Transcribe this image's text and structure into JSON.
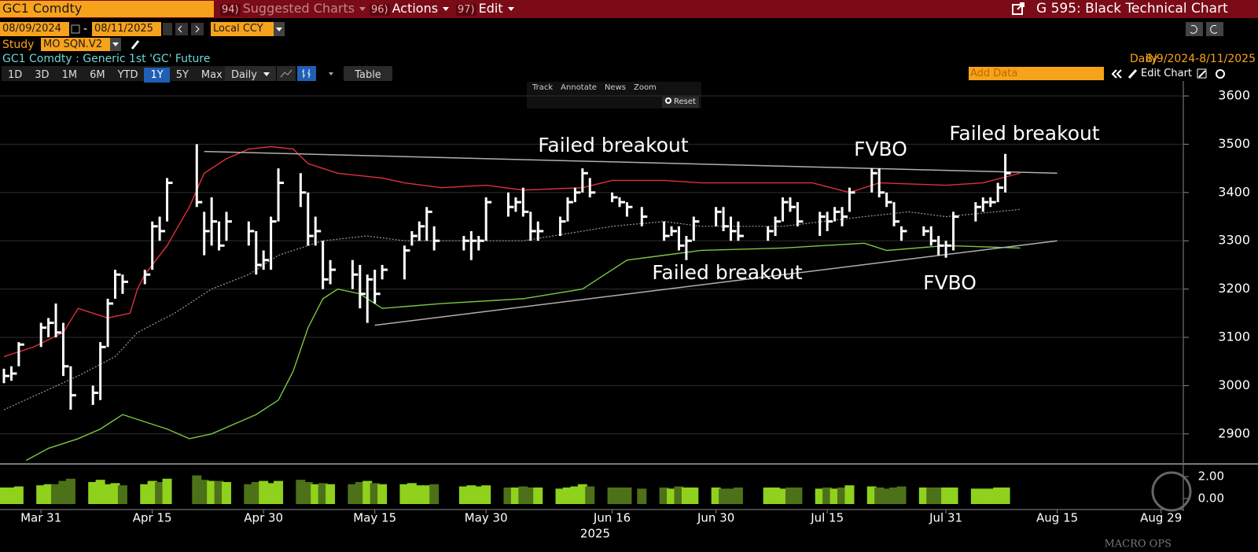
{
  "header": {
    "ticker": "GC1 Comdty",
    "menu": [
      {
        "num": "94)",
        "label": "Suggested Charts"
      },
      {
        "num": "96)",
        "label": "Actions"
      },
      {
        "num": "97)",
        "label": "Edit"
      }
    ],
    "page_title": "G 595: Black Technical Chart"
  },
  "controls": {
    "start_date": "08/09/2024",
    "date_separator": "-",
    "end_date": "08/11/2025",
    "currency": "Local CCY",
    "study_label": "Study",
    "study": "MO SQN.V2",
    "security": "GC1 Comdty : Generic 1st 'GC' Future",
    "frequency": "Daily",
    "range": "8/9/2024-8/11/2025",
    "periods": [
      "1D",
      "3D",
      "1M",
      "6M",
      "YTD",
      "1Y",
      "5Y",
      "Max"
    ],
    "active_period": "1Y",
    "period_dropdown": "Daily",
    "table": "Table",
    "add_data": "Add Data",
    "edit_chart": "Edit Chart"
  },
  "chart_tools": [
    "Track",
    "Annotate",
    "News",
    "Zoom"
  ],
  "reset": "Reset",
  "watermark": "MACRO OPS",
  "chart_data": {
    "type": "ohlc",
    "color": "#ffffff",
    "grid": true,
    "x": [
      "2025-03-26",
      "2025-03-27",
      "2025-03-28",
      "2025-03-31",
      "2025-04-01",
      "2025-04-02",
      "2025-04-03",
      "2025-04-04",
      "2025-04-07",
      "2025-04-08",
      "2025-04-09",
      "2025-04-10",
      "2025-04-11",
      "2025-04-14",
      "2025-04-15",
      "2025-04-16",
      "2025-04-17",
      "2025-04-21",
      "2025-04-22",
      "2025-04-23",
      "2025-04-24",
      "2025-04-25",
      "2025-04-28",
      "2025-04-29",
      "2025-04-30",
      "2025-05-01",
      "2025-05-02",
      "2025-05-05",
      "2025-05-06",
      "2025-05-07",
      "2025-05-08",
      "2025-05-09",
      "2025-05-12",
      "2025-05-13",
      "2025-05-14",
      "2025-05-15",
      "2025-05-16",
      "2025-05-19",
      "2025-05-20",
      "2025-05-21",
      "2025-05-22",
      "2025-05-23",
      "2025-05-27",
      "2025-05-28",
      "2025-05-29",
      "2025-05-30",
      "2025-06-02",
      "2025-06-03",
      "2025-06-04",
      "2025-06-05",
      "2025-06-06",
      "2025-06-09",
      "2025-06-10",
      "2025-06-11",
      "2025-06-12",
      "2025-06-13",
      "2025-06-16",
      "2025-06-17",
      "2025-06-18",
      "2025-06-20",
      "2025-06-23",
      "2025-06-24",
      "2025-06-25",
      "2025-06-26",
      "2025-06-27",
      "2025-06-30",
      "2025-07-01",
      "2025-07-02",
      "2025-07-03",
      "2025-07-07",
      "2025-07-08",
      "2025-07-09",
      "2025-07-10",
      "2025-07-11",
      "2025-07-14",
      "2025-07-15",
      "2025-07-16",
      "2025-07-17",
      "2025-07-18",
      "2025-07-21",
      "2025-07-22",
      "2025-07-23",
      "2025-07-24",
      "2025-07-25",
      "2025-07-28",
      "2025-07-29",
      "2025-07-30",
      "2025-07-31",
      "2025-08-01",
      "2025-08-04",
      "2025-08-05",
      "2025-08-06",
      "2025-08-07",
      "2025-08-08"
    ],
    "high": [
      3035,
      3040,
      3090,
      3130,
      3140,
      3170,
      3130,
      3040,
      3000,
      3090,
      3180,
      3240,
      3230,
      3240,
      3340,
      3350,
      3430,
      3500,
      3360,
      3390,
      3340,
      3360,
      3340,
      3320,
      3280,
      3350,
      3450,
      3440,
      3400,
      3350,
      3300,
      3260,
      3260,
      3250,
      3230,
      3240,
      3250,
      3290,
      3320,
      3340,
      3370,
      3330,
      3310,
      3320,
      3310,
      3390,
      3400,
      3390,
      3410,
      3360,
      3340,
      3350,
      3390,
      3410,
      3450,
      3430,
      3400,
      3390,
      3380,
      3370,
      3340,
      3330,
      3330,
      3310,
      3350,
      3370,
      3370,
      3350,
      3340,
      3330,
      3350,
      3390,
      3390,
      3380,
      3360,
      3360,
      3370,
      3370,
      3410,
      3450,
      3450,
      3400,
      3380,
      3330,
      3330,
      3330,
      3310,
      3300,
      3360,
      3380,
      3390,
      3390,
      3420,
      3480
    ],
    "low": [
      3005,
      3010,
      3040,
      3080,
      3100,
      3100,
      3020,
      2950,
      2960,
      2970,
      3080,
      3180,
      3190,
      3210,
      3240,
      3300,
      3340,
      3370,
      3270,
      3290,
      3280,
      3300,
      3290,
      3230,
      3240,
      3240,
      3340,
      3370,
      3290,
      3290,
      3200,
      3210,
      3200,
      3160,
      3130,
      3170,
      3220,
      3220,
      3290,
      3300,
      3300,
      3280,
      3280,
      3260,
      3280,
      3300,
      3350,
      3360,
      3350,
      3300,
      3300,
      3310,
      3340,
      3380,
      3400,
      3390,
      3380,
      3370,
      3350,
      3330,
      3300,
      3310,
      3280,
      3260,
      3300,
      3330,
      3320,
      3300,
      3300,
      3300,
      3310,
      3340,
      3360,
      3330,
      3310,
      3320,
      3340,
      3330,
      3360,
      3400,
      3390,
      3370,
      3330,
      3300,
      3310,
      3290,
      3270,
      3265,
      3280,
      3340,
      3360,
      3370,
      3380,
      3400
    ],
    "close": [
      3020,
      3025,
      3085,
      3120,
      3130,
      3110,
      3040,
      2980,
      2985,
      3080,
      3170,
      3230,
      3215,
      3230,
      3330,
      3320,
      3420,
      3380,
      3320,
      3340,
      3290,
      3340,
      3320,
      3250,
      3260,
      3340,
      3420,
      3400,
      3310,
      3320,
      3220,
      3240,
      3230,
      3190,
      3220,
      3190,
      3240,
      3280,
      3310,
      3330,
      3360,
      3300,
      3300,
      3300,
      3300,
      3380,
      3370,
      3380,
      3360,
      3320,
      3320,
      3340,
      3380,
      3400,
      3440,
      3400,
      3390,
      3380,
      3370,
      3350,
      3310,
      3320,
      3290,
      3300,
      3340,
      3360,
      3330,
      3320,
      3310,
      3320,
      3340,
      3380,
      3370,
      3340,
      3350,
      3340,
      3360,
      3350,
      3400,
      3440,
      3400,
      3380,
      3340,
      3320,
      3320,
      3300,
      3290,
      3290,
      3350,
      3370,
      3380,
      3380,
      3410,
      3440
    ],
    "overlays": [
      {
        "color": "#e0303a",
        "style": "solid",
        "x": [
          "2025-03-26",
          "2025-03-30",
          "2025-04-03",
          "2025-04-05",
          "2025-04-09",
          "2025-04-12",
          "2025-04-13",
          "2025-04-14",
          "2025-04-17",
          "2025-04-20",
          "2025-04-22",
          "2025-04-25",
          "2025-04-28",
          "2025-05-01",
          "2025-05-04",
          "2025-05-06",
          "2025-05-10",
          "2025-05-16",
          "2025-05-19",
          "2025-05-24",
          "2025-05-30",
          "2025-06-04",
          "2025-06-12",
          "2025-06-16",
          "2025-06-23",
          "2025-06-28",
          "2025-07-13",
          "2025-07-18",
          "2025-07-20",
          "2025-07-22",
          "2025-07-31",
          "2025-08-05",
          "2025-08-10"
        ],
        "values": [
          3060,
          3080,
          3110,
          3160,
          3140,
          3150,
          3200,
          3230,
          3290,
          3370,
          3440,
          3470,
          3490,
          3495,
          3490,
          3460,
          3440,
          3430,
          3420,
          3410,
          3415,
          3405,
          3410,
          3425,
          3425,
          3420,
          3420,
          3400,
          3410,
          3420,
          3415,
          3420,
          3440
        ]
      },
      {
        "color": "#7ac943",
        "style": "solid",
        "x": [
          "2025-03-29",
          "2025-04-01",
          "2025-04-05",
          "2025-04-08",
          "2025-04-10",
          "2025-04-11",
          "2025-04-13",
          "2025-04-17",
          "2025-04-20",
          "2025-04-23",
          "2025-04-26",
          "2025-04-29",
          "2025-05-02",
          "2025-05-04",
          "2025-05-06",
          "2025-05-08",
          "2025-05-10",
          "2025-05-13",
          "2025-05-16",
          "2025-05-24",
          "2025-06-04",
          "2025-06-12",
          "2025-06-16",
          "2025-06-18",
          "2025-06-23",
          "2025-06-28",
          "2025-07-09",
          "2025-07-20",
          "2025-07-23",
          "2025-07-31",
          "2025-08-10"
        ],
        "values": [
          2845,
          2870,
          2890,
          2910,
          2930,
          2940,
          2930,
          2910,
          2890,
          2900,
          2920,
          2940,
          2970,
          3030,
          3120,
          3180,
          3200,
          3190,
          3160,
          3170,
          3180,
          3200,
          3240,
          3260,
          3270,
          3280,
          3285,
          3295,
          3280,
          3290,
          3285
        ]
      },
      {
        "color": "#9a9a9a",
        "style": "dotted",
        "x": [
          "2025-03-26",
          "2025-04-05",
          "2025-04-10",
          "2025-04-13",
          "2025-04-18",
          "2025-04-23",
          "2025-04-28",
          "2025-05-02",
          "2025-05-08",
          "2025-05-14",
          "2025-05-19",
          "2025-05-24",
          "2025-06-04",
          "2025-06-16",
          "2025-06-23",
          "2025-06-28",
          "2025-07-09",
          "2025-07-20",
          "2025-07-26",
          "2025-07-31",
          "2025-08-10"
        ],
        "values": [
          2950,
          3020,
          3060,
          3110,
          3150,
          3200,
          3230,
          3270,
          3300,
          3310,
          3300,
          3300,
          3300,
          3330,
          3340,
          3330,
          3330,
          3350,
          3360,
          3350,
          3365
        ]
      }
    ],
    "trendlines": [
      {
        "color": "#b0b0b0",
        "x": [
          "2025-04-22",
          "2025-08-15"
        ],
        "values": [
          3485,
          3440
        ]
      },
      {
        "color": "#b0b0b0",
        "x": [
          "2025-05-15",
          "2025-08-15"
        ],
        "values": [
          3125,
          3300
        ]
      }
    ],
    "annotations": [
      "Failed breakout",
      "FVBO",
      "Failed breakout",
      "Failed breakout",
      "FVBO"
    ],
    "xlim": [
      "2025-03-26",
      "2025-09-01"
    ],
    "xticks": [
      {
        "value": "2025-03-31",
        "label": "Mar 31"
      },
      {
        "value": "2025-04-15",
        "label": "Apr 15"
      },
      {
        "value": "2025-04-30",
        "label": "Apr 30"
      },
      {
        "value": "2025-05-15",
        "label": "May 15"
      },
      {
        "value": "2025-05-30",
        "label": "May 30"
      },
      {
        "value": "2025-06-16",
        "label": "Jun 16"
      },
      {
        "value": "2025-06-30",
        "label": "Jun 30"
      },
      {
        "value": "2025-07-15",
        "label": "Jul 15"
      },
      {
        "value": "2025-07-31",
        "label": "Jul 31"
      },
      {
        "value": "2025-08-15",
        "label": "Aug 15"
      },
      {
        "value": "2025-08-29",
        "label": "Aug 29"
      }
    ],
    "xlabel": "2025",
    "ylim": [
      2841,
      3631
    ],
    "yticks": [
      2900,
      3000,
      3100,
      3200,
      3300,
      3400,
      3500,
      3600
    ],
    "volume": {
      "up_color": "#8fd11c",
      "down_color": "#4d7118",
      "ylim": [
        -0.5,
        3.0
      ],
      "yticks": [
        {
          "value": 2,
          "label": "2.00"
        },
        {
          "value": 0,
          "label": "0.00"
        }
      ],
      "values": [
        1.0,
        1.0,
        1.1,
        1.2,
        1.3,
        1.3,
        1.6,
        1.8,
        1.5,
        1.7,
        1.3,
        1.4,
        1.2,
        1.3,
        1.6,
        1.5,
        1.8,
        2.1,
        1.7,
        1.6,
        1.6,
        1.5,
        1.3,
        1.5,
        1.6,
        1.4,
        1.6,
        1.7,
        1.5,
        1.3,
        1.4,
        1.3,
        1.3,
        1.5,
        1.6,
        1.4,
        1.3,
        1.3,
        1.4,
        1.2,
        1.2,
        1.3,
        1.1,
        1.2,
        1.1,
        1.2,
        1.0,
        1.0,
        1.1,
        1.0,
        1.0,
        0.9,
        1.0,
        1.1,
        1.3,
        1.1,
        1.0,
        1.0,
        1.0,
        0.9,
        1.0,
        0.9,
        1.1,
        1.0,
        1.0,
        1.0,
        0.9,
        0.9,
        1.0,
        1.0,
        1.0,
        0.9,
        1.0,
        1.0,
        0.9,
        1.0,
        0.9,
        1.0,
        1.2,
        1.1,
        1.0,
        0.9,
        1.0,
        1.1,
        1.0,
        1.0,
        1.0,
        1.0,
        1.0,
        0.9,
        0.9,
        0.9,
        1.0,
        1.0
      ]
    }
  }
}
